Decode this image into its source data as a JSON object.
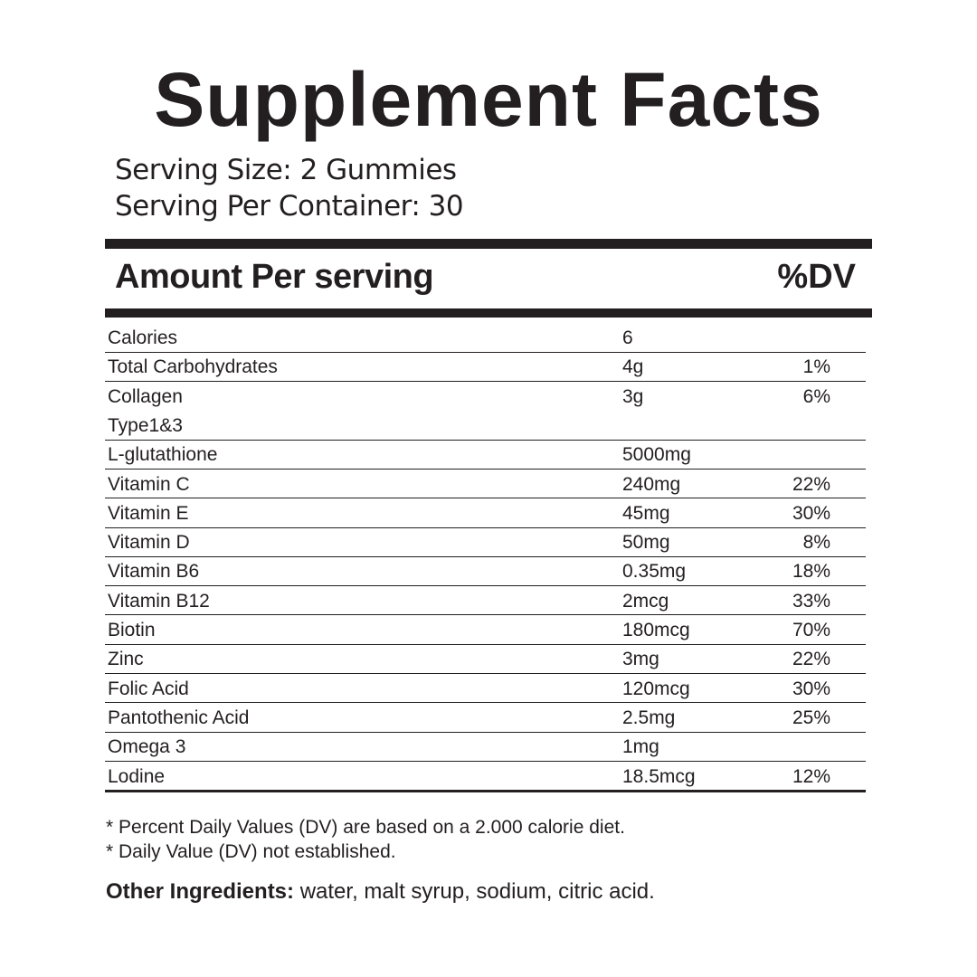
{
  "header": {
    "title": "Supplement Facts",
    "serving_size": "Serving Size: 2 Gummies",
    "servings_per_container": "Serving Per Container: 30"
  },
  "table": {
    "heading": "Amount Per serving",
    "dv_heading": "%DV",
    "rows": [
      {
        "name": "Calories",
        "amount": "6"
      },
      {
        "name": "Total Carbohydrates",
        "amount": "4g",
        "dv": "1%"
      },
      {
        "name": "Collagen",
        "name_line2": "Type1&3",
        "amount": "3g",
        "dv": "6%"
      },
      {
        "name": "L-glutathione",
        "amount": "5000mg"
      },
      {
        "name": "Vitamin C",
        "amount": "240mg",
        "dv": "22%"
      },
      {
        "name": "Vitamin E",
        "amount": "45mg",
        "dv": "30%"
      },
      {
        "name": "Vitamin D",
        "amount": "50mg",
        "dv": "8%"
      },
      {
        "name": "Vitamin B6",
        "amount": "0.35mg",
        "dv": "18%"
      },
      {
        "name": "Vitamin B12",
        "amount": "2mcg",
        "dv": "33%"
      },
      {
        "name": "Biotin",
        "amount": "180mcg",
        "dv": "70%"
      },
      {
        "name": "Zinc",
        "amount": "3mg",
        "dv": "22%"
      },
      {
        "name": "Folic Acid",
        "amount": "120mcg",
        "dv": "30%"
      },
      {
        "name": "Pantothenic Acid",
        "amount": "2.5mg",
        "dv": "25%"
      },
      {
        "name": "Omega 3",
        "amount": "1mg"
      },
      {
        "name": "Lodine",
        "amount": "18.5mcg",
        "dv": "12%"
      }
    ]
  },
  "footnotes": [
    "* Percent Daily Values (DV) are based on a 2.000 calorie diet.",
    "* Daily Value (DV) not established."
  ],
  "other_ingredients": {
    "label": "Other Ingredients:",
    "text": "water, malt syrup, sodium, citric acid."
  }
}
